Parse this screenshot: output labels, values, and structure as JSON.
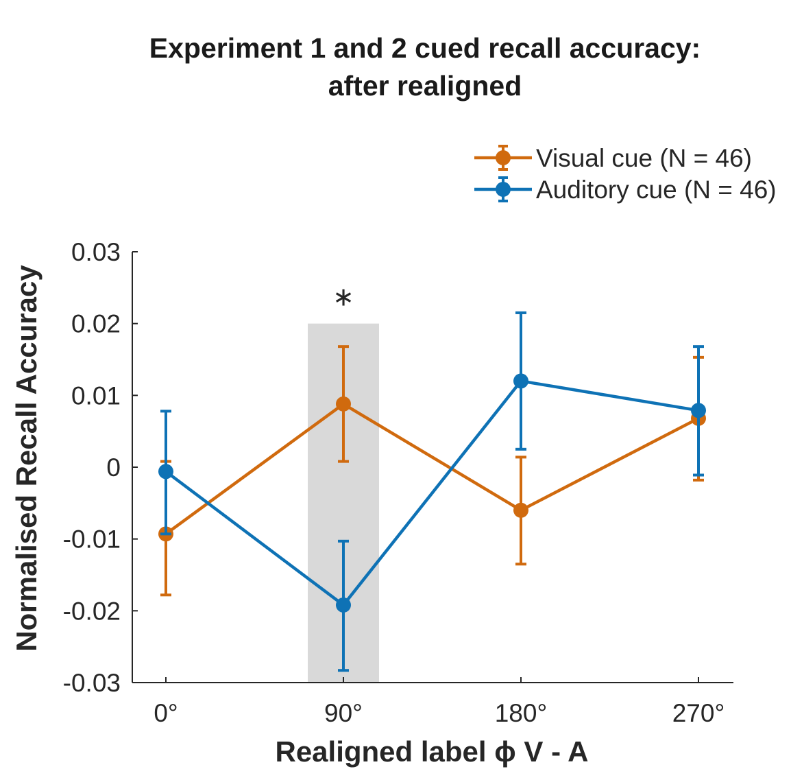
{
  "chart_data": {
    "type": "line",
    "title": [
      "Experiment 1 and 2 cued recall accuracy:",
      "after realigned"
    ],
    "xlabel": "Realigned label ϕ V - A",
    "ylabel": "Normalised Recall Accuracy",
    "categories": [
      "0°",
      "90°",
      "180°",
      "270°"
    ],
    "ylim": [
      -0.03,
      0.03
    ],
    "yticks": [
      0.03,
      0.02,
      0.01,
      0,
      -0.01,
      -0.02,
      -0.03
    ],
    "ytick_labels": [
      "0.03",
      "0.02",
      "0.01",
      "0",
      "-0.01",
      "-0.02",
      "-0.03"
    ],
    "series": [
      {
        "name": "Visual cue (N = 46)",
        "color": "#d06a0e",
        "values": [
          -0.0093,
          0.0088,
          -0.006,
          0.0068
        ],
        "err_low": [
          -0.0178,
          0.0008,
          -0.0135,
          -0.0018
        ],
        "err_high": [
          0.0008,
          0.0168,
          0.0014,
          0.0153
        ]
      },
      {
        "name": "Auditory cue (N = 46)",
        "color": "#0e72b5",
        "values": [
          -0.0006,
          -0.0192,
          0.012,
          0.0079
        ],
        "err_low": [
          -0.0093,
          -0.0283,
          0.0025,
          -0.0011
        ],
        "err_high": [
          0.0078,
          -0.0103,
          0.0215,
          0.0168
        ]
      }
    ],
    "highlight": {
      "category": "90°",
      "ymin": -0.03,
      "ymax": 0.02,
      "color": "#d9d9d9"
    },
    "annotations": [
      {
        "category": "90°",
        "y": 0.025,
        "text": "*"
      }
    ],
    "legend_position": "top-right"
  }
}
